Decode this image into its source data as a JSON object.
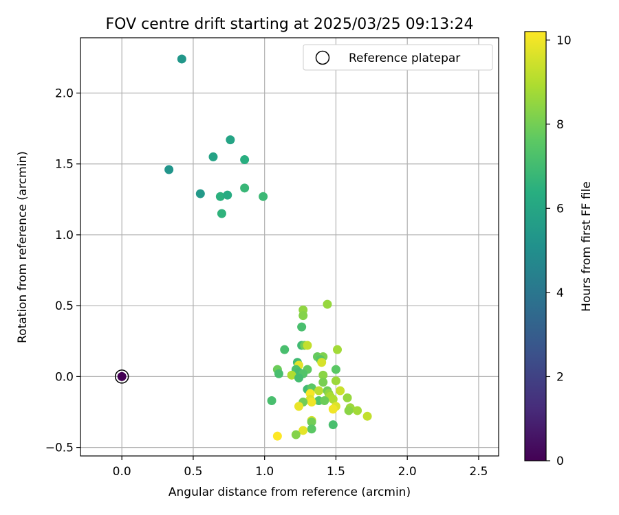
{
  "chart_data": {
    "type": "scatter",
    "title": "FOV centre drift starting at 2025/03/25 09:13:24",
    "xlabel": "Angular distance from reference (arcmin)",
    "ylabel": "Rotation from reference (arcmin)",
    "xlim": [
      -0.29,
      2.64
    ],
    "ylim": [
      -0.56,
      2.39
    ],
    "xticks": [
      "0.0",
      "0.5",
      "1.0",
      "1.5",
      "2.0",
      "2.5"
    ],
    "yticks": [
      "−0.5",
      "0.0",
      "0.5",
      "1.0",
      "1.5",
      "2.0"
    ],
    "xtick_values": [
      0,
      0.5,
      1.0,
      1.5,
      2.0,
      2.5
    ],
    "ytick_values": [
      -0.5,
      0,
      0.5,
      1.0,
      1.5,
      2.0
    ],
    "grid": true,
    "legend": {
      "position": "top-right",
      "label": "Reference platepar"
    },
    "colorbar": {
      "label": "Hours from first FF file",
      "colormap": "viridis",
      "range": [
        0,
        10.2
      ],
      "ticks": [
        "0",
        "2",
        "4",
        "6",
        "8",
        "10"
      ],
      "tick_values": [
        0,
        2,
        4,
        6,
        8,
        10
      ]
    },
    "reference_point": {
      "x": 0.0,
      "y": 0.0,
      "h": 0.0
    },
    "points": [
      {
        "x": 0.42,
        "y": 2.24,
        "h": 5.4
      },
      {
        "x": 0.33,
        "y": 1.46,
        "h": 5.3
      },
      {
        "x": 0.55,
        "y": 1.29,
        "h": 5.5
      },
      {
        "x": 0.64,
        "y": 1.55,
        "h": 5.9
      },
      {
        "x": 0.76,
        "y": 1.67,
        "h": 6.0
      },
      {
        "x": 0.86,
        "y": 1.53,
        "h": 6.4
      },
      {
        "x": 0.69,
        "y": 1.27,
        "h": 6.5
      },
      {
        "x": 0.74,
        "y": 1.28,
        "h": 6.3
      },
      {
        "x": 0.7,
        "y": 1.15,
        "h": 6.6
      },
      {
        "x": 0.86,
        "y": 1.33,
        "h": 6.8
      },
      {
        "x": 0.99,
        "y": 1.27,
        "h": 6.9
      },
      {
        "x": 1.44,
        "y": 0.51,
        "h": 8.6
      },
      {
        "x": 1.27,
        "y": 0.47,
        "h": 8.5
      },
      {
        "x": 1.27,
        "y": 0.43,
        "h": 8.3
      },
      {
        "x": 1.26,
        "y": 0.35,
        "h": 7.2
      },
      {
        "x": 1.26,
        "y": 0.22,
        "h": 7.0
      },
      {
        "x": 1.28,
        "y": 0.22,
        "h": 8.0
      },
      {
        "x": 1.3,
        "y": 0.22,
        "h": 9.3
      },
      {
        "x": 1.14,
        "y": 0.19,
        "h": 7.2
      },
      {
        "x": 1.51,
        "y": 0.19,
        "h": 8.8
      },
      {
        "x": 1.37,
        "y": 0.14,
        "h": 7.8
      },
      {
        "x": 1.41,
        "y": 0.14,
        "h": 8.2
      },
      {
        "x": 1.39,
        "y": 0.12,
        "h": 7.5
      },
      {
        "x": 1.4,
        "y": 0.1,
        "h": 9.6
      },
      {
        "x": 1.23,
        "y": 0.1,
        "h": 7.0
      },
      {
        "x": 1.24,
        "y": 0.08,
        "h": 9.8
      },
      {
        "x": 1.09,
        "y": 0.05,
        "h": 7.9
      },
      {
        "x": 1.3,
        "y": 0.05,
        "h": 7.7
      },
      {
        "x": 1.22,
        "y": 0.05,
        "h": 7.3
      },
      {
        "x": 1.5,
        "y": 0.05,
        "h": 7.6
      },
      {
        "x": 1.24,
        "y": 0.03,
        "h": 7.1
      },
      {
        "x": 1.27,
        "y": 0.02,
        "h": 7.4
      },
      {
        "x": 1.1,
        "y": 0.02,
        "h": 7.2
      },
      {
        "x": 1.41,
        "y": 0.01,
        "h": 8.4
      },
      {
        "x": 1.19,
        "y": 0.01,
        "h": 9.0
      },
      {
        "x": 1.24,
        "y": -0.01,
        "h": 7.1
      },
      {
        "x": 1.5,
        "y": -0.03,
        "h": 8.7
      },
      {
        "x": 1.41,
        "y": -0.04,
        "h": 8.1
      },
      {
        "x": 1.3,
        "y": -0.09,
        "h": 7.0
      },
      {
        "x": 1.33,
        "y": -0.08,
        "h": 7.6
      },
      {
        "x": 1.38,
        "y": -0.1,
        "h": 9.2
      },
      {
        "x": 1.44,
        "y": -0.1,
        "h": 8.0
      },
      {
        "x": 1.45,
        "y": -0.12,
        "h": 8.5
      },
      {
        "x": 1.53,
        "y": -0.1,
        "h": 9.4
      },
      {
        "x": 1.46,
        "y": -0.14,
        "h": 8.9
      },
      {
        "x": 1.32,
        "y": -0.12,
        "h": 10.1
      },
      {
        "x": 1.48,
        "y": -0.16,
        "h": 9.0
      },
      {
        "x": 1.38,
        "y": -0.17,
        "h": 7.4
      },
      {
        "x": 1.42,
        "y": -0.17,
        "h": 7.9
      },
      {
        "x": 1.32,
        "y": -0.16,
        "h": 9.7
      },
      {
        "x": 1.33,
        "y": -0.18,
        "h": 10.0
      },
      {
        "x": 1.27,
        "y": -0.18,
        "h": 8.0
      },
      {
        "x": 1.58,
        "y": -0.15,
        "h": 8.6
      },
      {
        "x": 1.05,
        "y": -0.17,
        "h": 7.2
      },
      {
        "x": 1.24,
        "y": -0.21,
        "h": 9.9
      },
      {
        "x": 1.5,
        "y": -0.21,
        "h": 9.7
      },
      {
        "x": 1.48,
        "y": -0.23,
        "h": 10.0
      },
      {
        "x": 1.6,
        "y": -0.22,
        "h": 8.7
      },
      {
        "x": 1.65,
        "y": -0.24,
        "h": 8.8
      },
      {
        "x": 1.59,
        "y": -0.24,
        "h": 8.4
      },
      {
        "x": 1.72,
        "y": -0.28,
        "h": 9.3
      },
      {
        "x": 1.33,
        "y": -0.31,
        "h": 9.6
      },
      {
        "x": 1.33,
        "y": -0.32,
        "h": 8.0
      },
      {
        "x": 1.48,
        "y": -0.34,
        "h": 7.2
      },
      {
        "x": 1.33,
        "y": -0.37,
        "h": 7.6
      },
      {
        "x": 1.27,
        "y": -0.38,
        "h": 9.8
      },
      {
        "x": 1.22,
        "y": -0.41,
        "h": 8.3
      },
      {
        "x": 1.09,
        "y": -0.42,
        "h": 10.2
      }
    ]
  }
}
